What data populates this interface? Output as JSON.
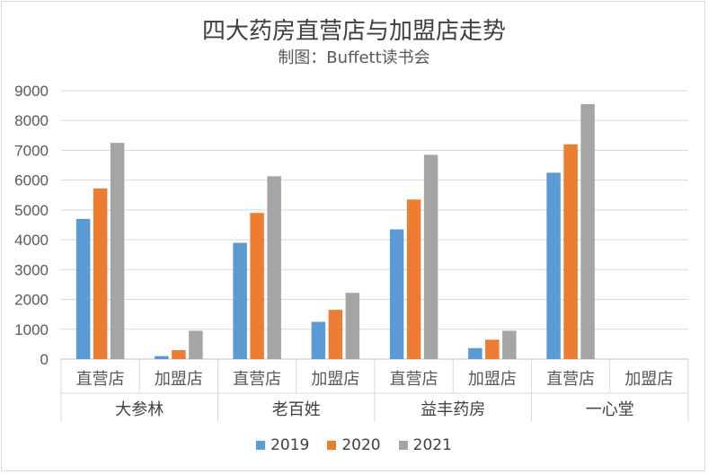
{
  "chart_data": {
    "type": "bar",
    "title": "四大药房直营店与加盟店走势",
    "subtitle": "制图：Buffett读书会",
    "groups": [
      {
        "name": "大参林",
        "categories": [
          "直营店",
          "加盟店"
        ]
      },
      {
        "name": "老百姓",
        "categories": [
          "直营店",
          "加盟店"
        ]
      },
      {
        "name": "益丰药房",
        "categories": [
          "直营店",
          "加盟店"
        ]
      },
      {
        "name": "一心堂",
        "categories": [
          "直营店",
          "加盟店"
        ]
      }
    ],
    "series": [
      {
        "name": "2019",
        "color": "#5b9bd5",
        "values": [
          4700,
          100,
          3900,
          1250,
          4350,
          370,
          6250,
          0
        ]
      },
      {
        "name": "2020",
        "color": "#ed7d31",
        "values": [
          5720,
          300,
          4900,
          1650,
          5350,
          650,
          7200,
          0
        ]
      },
      {
        "name": "2021",
        "color": "#a5a5a5",
        "values": [
          7250,
          950,
          6130,
          2220,
          6850,
          950,
          8550,
          0
        ]
      }
    ],
    "ylim": [
      0,
      9000
    ],
    "yticks": [
      "0",
      "1000",
      "2000",
      "3000",
      "4000",
      "5000",
      "6000",
      "7000",
      "8000",
      "9000"
    ],
    "grid": true,
    "legend_position": "bottom"
  }
}
